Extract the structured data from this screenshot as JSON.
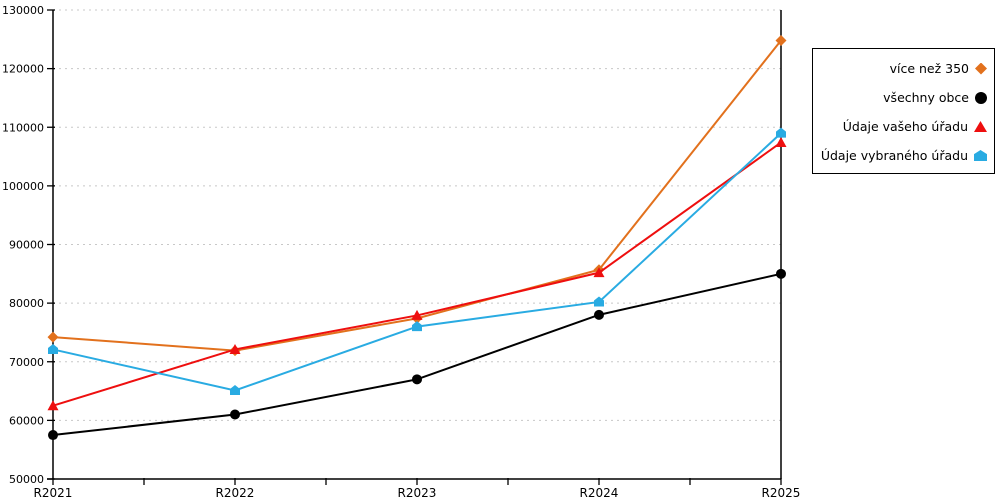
{
  "chart_data": {
    "type": "line",
    "title": "",
    "xlabel": "",
    "ylabel": "",
    "categories": [
      "R2021",
      "R2022",
      "R2023",
      "R2024",
      "R2025"
    ],
    "y_tick_labels": [
      "50000",
      "60000",
      "70000",
      "80000",
      "90000",
      "100000",
      "110000",
      "120000",
      "130000"
    ],
    "ylim": [
      50000,
      130000
    ],
    "ytick_step": 10000,
    "grid": "horizontal-dotted",
    "legend_position": "top-right",
    "series": [
      {
        "name": "více než 350",
        "marker": "diamond",
        "color": "#e2711d",
        "values": [
          74200,
          71900,
          77400,
          85700,
          124800
        ]
      },
      {
        "name": "všechny obce",
        "marker": "circle",
        "color": "#000000",
        "values": [
          57500,
          61000,
          67000,
          78000,
          85000
        ]
      },
      {
        "name": "Údaje vašeho úřadu",
        "marker": "triangle",
        "color": "#ee0f0f",
        "values": [
          62500,
          72100,
          77900,
          85200,
          107400
        ]
      },
      {
        "name": "Údaje vybraného úřadu",
        "marker": "pentagon",
        "color": "#29abe2",
        "values": [
          72100,
          65100,
          76000,
          80200,
          109000
        ]
      }
    ],
    "colors": {
      "grid": "#c8c8c8",
      "axis": "#000000",
      "background": "#ffffff"
    }
  }
}
